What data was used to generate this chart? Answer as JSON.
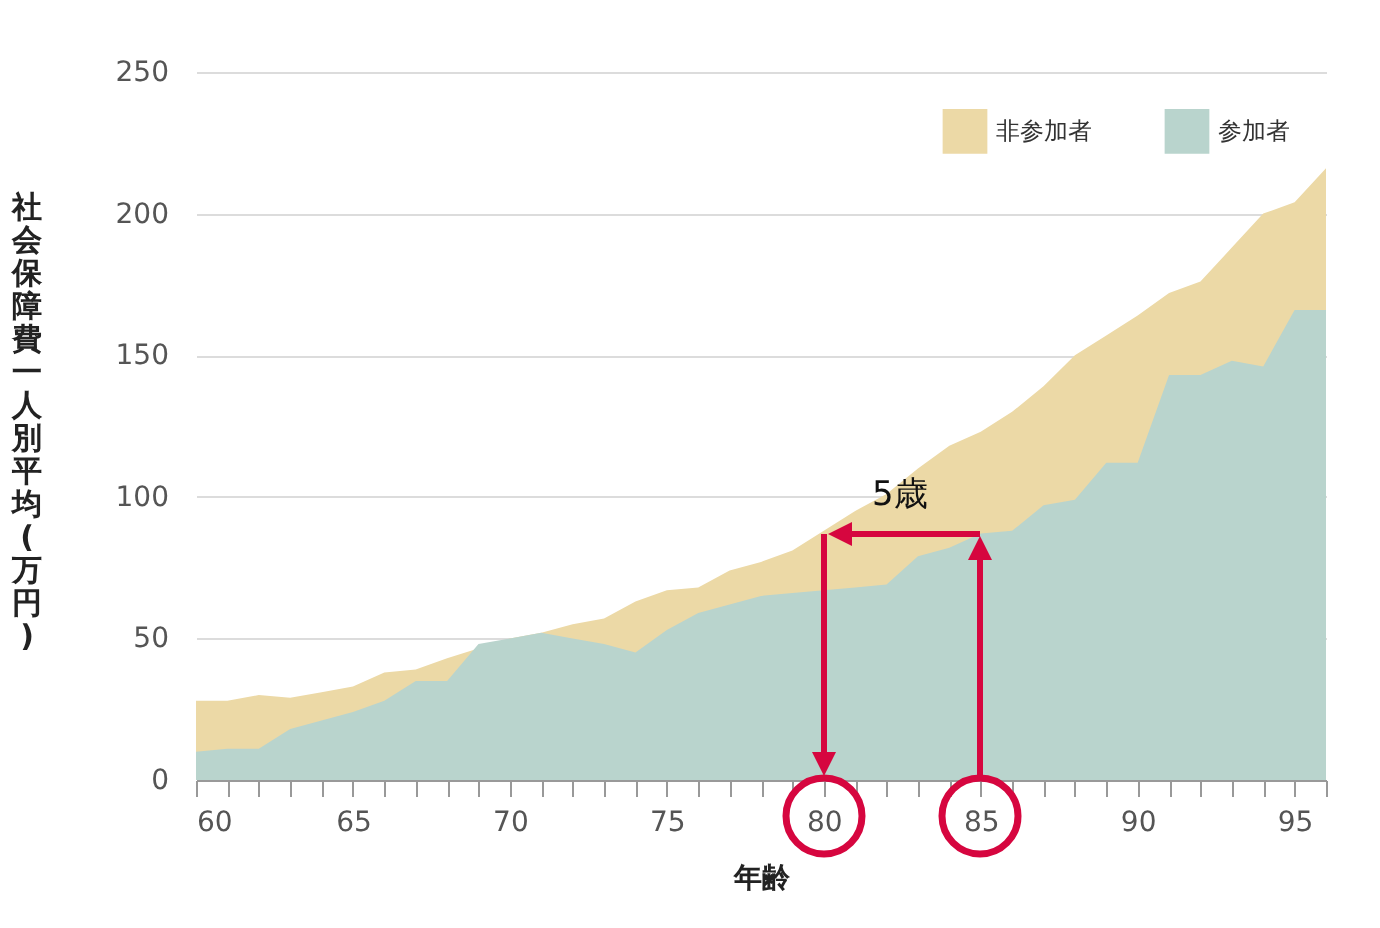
{
  "chart_data": {
    "type": "area",
    "xlabel": "年齢",
    "ylabel": "社会保障費一人別平均(万円)",
    "x": [
      60,
      61,
      62,
      63,
      64,
      65,
      66,
      67,
      68,
      69,
      70,
      71,
      72,
      73,
      74,
      75,
      76,
      77,
      78,
      79,
      80,
      81,
      82,
      83,
      84,
      85,
      86,
      87,
      88,
      89,
      90,
      91,
      92,
      93,
      94,
      95,
      96
    ],
    "series": [
      {
        "name": "非参加者",
        "color": "#ecd9a6",
        "values": [
          28,
          28,
          30,
          29,
          31,
          33,
          38,
          39,
          43,
          null,
          50,
          52,
          55,
          57,
          63,
          67,
          68,
          74,
          77,
          81,
          88,
          95,
          101,
          110,
          118,
          123,
          130,
          139,
          150,
          157,
          164,
          172,
          176,
          188,
          200,
          204,
          216
        ]
      },
      {
        "name": "参加者",
        "color": "#b9d4cd",
        "values": [
          10,
          11,
          11,
          18,
          21,
          24,
          28,
          35,
          35,
          48,
          50,
          52,
          50,
          48,
          45,
          53,
          59,
          62,
          65,
          66,
          67,
          68,
          69,
          79,
          82,
          87,
          88,
          97,
          99,
          112,
          112,
          143,
          143,
          148,
          146,
          166,
          166
        ]
      }
    ],
    "xlim": [
      60,
      96
    ],
    "xticks": [
      60,
      {
        "value": 61,
        "label": null
      },
      {
        "value": 62,
        "label": null
      },
      {
        "value": 63,
        "label": null
      },
      {
        "value": 64,
        "label": null
      },
      65,
      {
        "value": 66,
        "label": null
      },
      {
        "value": 67,
        "label": null
      },
      {
        "value": 68,
        "label": null
      },
      {
        "value": 69,
        "label": null
      },
      70,
      {
        "value": 71,
        "label": null
      },
      {
        "value": 72,
        "label": null
      },
      {
        "value": 73,
        "label": null
      },
      {
        "value": 74,
        "label": null
      },
      75,
      {
        "value": 76,
        "label": null
      },
      {
        "value": 77,
        "label": null
      },
      {
        "value": 78,
        "label": null
      },
      {
        "value": 79,
        "label": null
      },
      80,
      {
        "value": 81,
        "label": null
      },
      {
        "value": 82,
        "label": null
      },
      {
        "value": 83,
        "label": null
      },
      {
        "value": 84,
        "label": null
      },
      85,
      {
        "value": 86,
        "label": null
      },
      {
        "value": 87,
        "label": null
      },
      {
        "value": 88,
        "label": null
      },
      {
        "value": 89,
        "label": null
      },
      90,
      {
        "value": 91,
        "label": null
      },
      {
        "value": 92,
        "label": null
      },
      {
        "value": 93,
        "label": null
      },
      {
        "value": 94,
        "label": null
      },
      95,
      {
        "value": 96,
        "label": null
      }
    ],
    "ylim": [
      0,
      250
    ],
    "yticks": [
      0,
      50,
      100,
      150,
      200,
      250
    ],
    "grid": "y",
    "legend": "top right",
    "annotations": [
      {
        "text": "5歳",
        "x": 80,
        "y": 88
      }
    ]
  }
}
